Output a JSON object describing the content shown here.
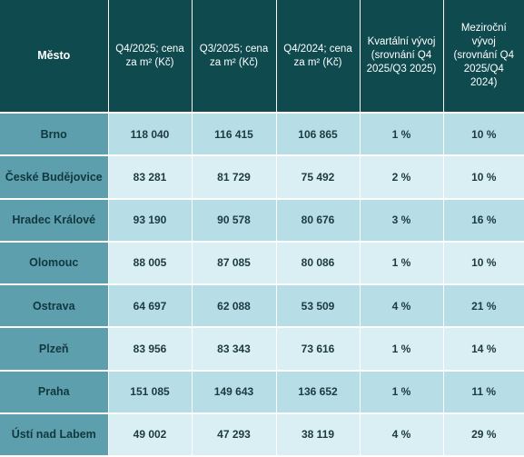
{
  "table": {
    "headers": {
      "city": "Město",
      "q4_2025": "Q4/2025; cena za m² (Kč)",
      "q3_2025": "Q3/2025; cena za m² (Kč)",
      "q4_2024": "Q4/2024; cena za m² (Kč)",
      "qoq": "Kvartální vývoj (srovnání Q4 2025/Q3 2025)",
      "yoy": "Meziroční vývoj (srovnání Q4 2025/Q4 2024)"
    },
    "rows": [
      {
        "city": "Brno",
        "q4_2025": "118 040",
        "q3_2025": "116 415",
        "q4_2024": "106 865",
        "qoq": "1 %",
        "yoy": "10 %"
      },
      {
        "city": "České Budějovice",
        "q4_2025": "83 281",
        "q3_2025": "81 729",
        "q4_2024": "75 492",
        "qoq": "2 %",
        "yoy": "10 %"
      },
      {
        "city": "Hradec Králové",
        "q4_2025": "93 190",
        "q3_2025": "90 578",
        "q4_2024": "80 676",
        "qoq": "3 %",
        "yoy": "16 %"
      },
      {
        "city": "Olomouc",
        "q4_2025": "88 005",
        "q3_2025": "87 085",
        "q4_2024": "80 086",
        "qoq": "1 %",
        "yoy": "10 %"
      },
      {
        "city": "Ostrava",
        "q4_2025": "64 697",
        "q3_2025": "62 088",
        "q4_2024": "53 509",
        "qoq": "4 %",
        "yoy": "21 %"
      },
      {
        "city": "Plzeň",
        "q4_2025": "83 956",
        "q3_2025": "83 343",
        "q4_2024": "73 616",
        "qoq": "1 %",
        "yoy": "14 %"
      },
      {
        "city": "Praha",
        "q4_2025": "151 085",
        "q3_2025": "149 643",
        "q4_2024": "136 652",
        "qoq": "1 %",
        "yoy": "11 %"
      },
      {
        "city": "Ústí nad Labem",
        "q4_2025": "49 002",
        "q3_2025": "47 293",
        "q4_2024": "38 119",
        "qoq": "4 %",
        "yoy": "29 %"
      }
    ]
  },
  "colors": {
    "header_bg": "#0f4a4f",
    "city_bg": "#5e9fad",
    "row_odd_bg": "#b7dde6",
    "row_even_bg": "#daeff4"
  }
}
